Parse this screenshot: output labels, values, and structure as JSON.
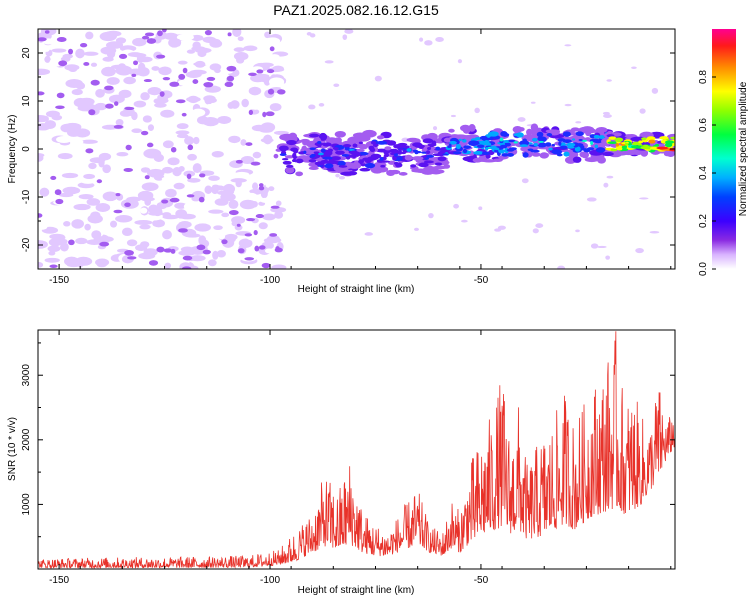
{
  "title": "PAZ1.2025.082.16.12.G15",
  "chart_data": [
    {
      "type": "heatmap",
      "xlabel": "Height of straight line (km)",
      "ylabel": "Frequency (Hz)",
      "xlim": [
        -155,
        -4
      ],
      "ylim": [
        -25,
        25
      ],
      "x_ticks": [
        "-150",
        "-100",
        "-50"
      ],
      "y_ticks": [
        "20",
        "10",
        "0",
        "-10",
        "-20"
      ],
      "colorbar": {
        "label": "Normalized spectral amplitude",
        "range": [
          0,
          1
        ],
        "ticks": [
          "0.0",
          "0.2",
          "0.4",
          "0.6",
          "0.8"
        ]
      },
      "features": [
        {
          "x_range": [
            -155,
            -97
          ],
          "freq_range": [
            -25,
            25
          ],
          "amplitude": "0.05-0.2",
          "note": "diffuse noise"
        },
        {
          "x_range": [
            -97,
            -58
          ],
          "freq_center": -1,
          "freq_width": 6,
          "amplitude": "0.2-0.4"
        },
        {
          "x_range": [
            -58,
            -20
          ],
          "freq_center": 1,
          "freq_width": 5,
          "amplitude": "0.3-0.5"
        },
        {
          "x_range": [
            -20,
            -4
          ],
          "freq_center": 1,
          "freq_width": 3,
          "amplitude": "0.6-1.0"
        }
      ]
    },
    {
      "type": "line",
      "xlabel": "Height of straight line (km)",
      "ylabel": "SNR (10 * v/v)",
      "xlim": [
        -155,
        -4
      ],
      "ylim": [
        0,
        3700
      ],
      "x_ticks": [
        "-150",
        "-100",
        "-50"
      ],
      "y_ticks": [
        "1000",
        "2000",
        "3000"
      ],
      "color": "#e8322a",
      "envelope": {
        "x": [
          -155,
          -140,
          -120,
          -105,
          -98,
          -94,
          -90,
          -87,
          -84,
          -81,
          -78,
          -75,
          -72,
          -68,
          -65,
          -62,
          -59,
          -57,
          -55,
          -53,
          -51,
          -49,
          -47,
          -45,
          -43,
          -41,
          -39,
          -36,
          -33,
          -30,
          -28,
          -26,
          -24,
          -22,
          -20,
          -18,
          -16,
          -14,
          -12,
          -10,
          -8,
          -6,
          -4
        ],
        "y_max": [
          160,
          180,
          190,
          210,
          300,
          600,
          900,
          1500,
          1200,
          1750,
          900,
          700,
          600,
          1000,
          1250,
          650,
          600,
          1100,
          900,
          1600,
          1900,
          2200,
          2500,
          3050,
          2000,
          2600,
          1600,
          2050,
          2300,
          2800,
          2300,
          2500,
          2900,
          3000,
          3300,
          3700,
          2600,
          2800,
          2400,
          2200,
          2950,
          2300,
          2500
        ],
        "y_min": [
          20,
          20,
          20,
          25,
          60,
          120,
          250,
          350,
          300,
          380,
          250,
          200,
          200,
          300,
          380,
          250,
          200,
          320,
          250,
          380,
          450,
          550,
          600,
          650,
          550,
          600,
          450,
          500,
          600,
          700,
          600,
          700,
          800,
          850,
          900,
          950,
          850,
          900,
          1000,
          1200,
          1400,
          1700,
          1900
        ]
      }
    }
  ]
}
